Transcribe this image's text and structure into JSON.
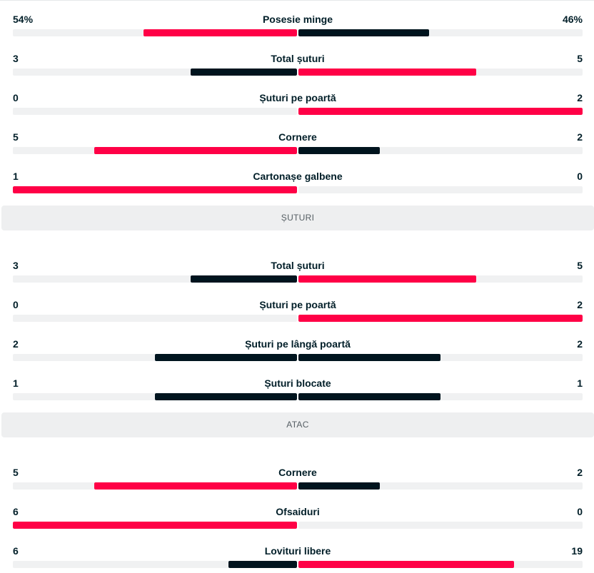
{
  "colors": {
    "winner": "#ff0046",
    "other": "#00141e",
    "track": "#f0f1f2"
  },
  "blocks": [
    {
      "type": "stats",
      "rows": [
        {
          "label": "Posesie minge",
          "home": "54%",
          "away": "46%",
          "home_share": 0.54,
          "away_share": 0.46,
          "home_color": "winner",
          "away_color": "other"
        },
        {
          "label": "Total șuturi",
          "home": "3",
          "away": "5",
          "home_share": 0.375,
          "away_share": 0.625,
          "home_color": "other",
          "away_color": "winner"
        },
        {
          "label": "Șuturi pe poartă",
          "home": "0",
          "away": "2",
          "home_share": 0,
          "away_share": 1,
          "home_color": "other",
          "away_color": "winner"
        },
        {
          "label": "Cornere",
          "home": "5",
          "away": "2",
          "home_share": 0.714,
          "away_share": 0.286,
          "home_color": "winner",
          "away_color": "other"
        },
        {
          "label": "Cartonașe galbene",
          "home": "1",
          "away": "0",
          "home_share": 1,
          "away_share": 0,
          "home_color": "winner",
          "away_color": "other"
        }
      ]
    },
    {
      "type": "section",
      "title": "ȘUTURI"
    },
    {
      "type": "stats",
      "rows": [
        {
          "label": "Total șuturi",
          "home": "3",
          "away": "5",
          "home_share": 0.375,
          "away_share": 0.625,
          "home_color": "other",
          "away_color": "winner"
        },
        {
          "label": "Șuturi pe poartă",
          "home": "0",
          "away": "2",
          "home_share": 0,
          "away_share": 1,
          "home_color": "other",
          "away_color": "winner"
        },
        {
          "label": "Șuturi pe lângă poartă",
          "home": "2",
          "away": "2",
          "home_share": 0.5,
          "away_share": 0.5,
          "home_color": "other",
          "away_color": "other"
        },
        {
          "label": "Șuturi blocate",
          "home": "1",
          "away": "1",
          "home_share": 0.5,
          "away_share": 0.5,
          "home_color": "other",
          "away_color": "other"
        }
      ]
    },
    {
      "type": "section",
      "title": "ATAC"
    },
    {
      "type": "stats",
      "rows": [
        {
          "label": "Cornere",
          "home": "5",
          "away": "2",
          "home_share": 0.714,
          "away_share": 0.286,
          "home_color": "winner",
          "away_color": "other"
        },
        {
          "label": "Ofsaiduri",
          "home": "6",
          "away": "0",
          "home_share": 1,
          "away_share": 0,
          "home_color": "winner",
          "away_color": "other"
        },
        {
          "label": "Lovituri libere",
          "home": "6",
          "away": "19",
          "home_share": 0.24,
          "away_share": 0.76,
          "home_color": "other",
          "away_color": "winner"
        }
      ]
    }
  ]
}
